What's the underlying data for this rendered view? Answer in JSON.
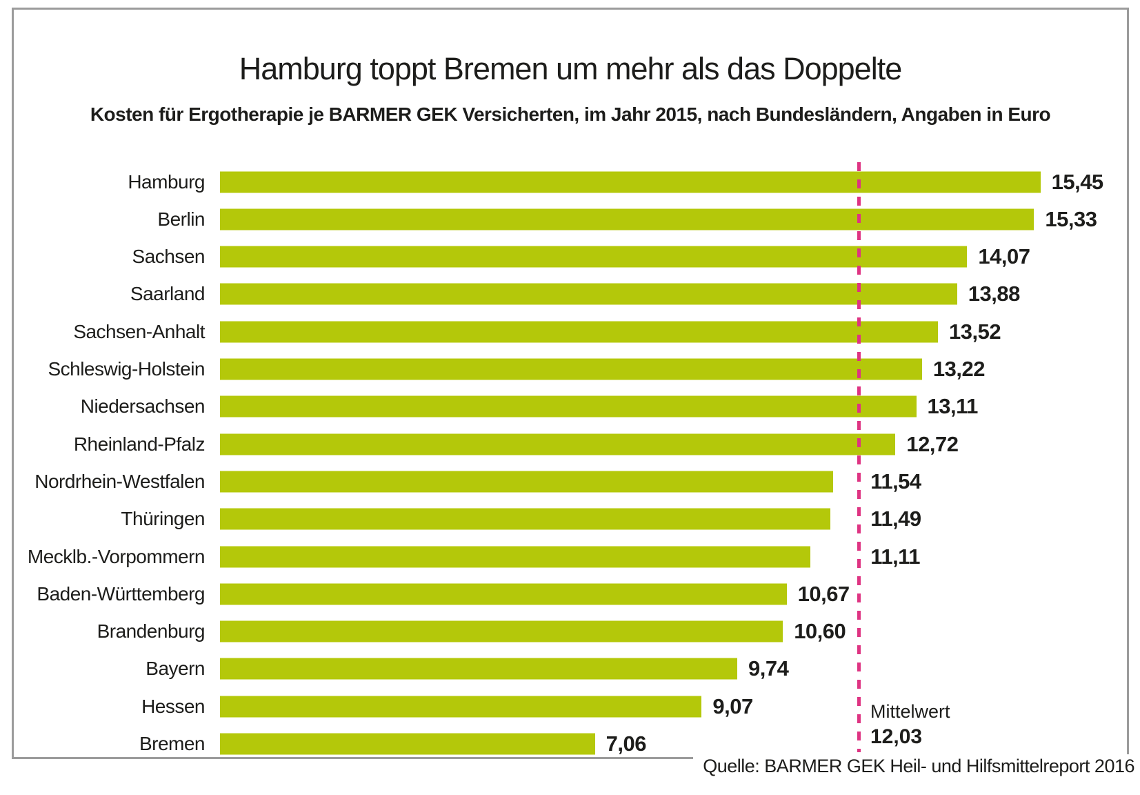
{
  "title": "Hamburg toppt Bremen um mehr als das Doppelte",
  "subtitle": "Kosten für Ergotherapie je BARMER GEK Versicherten, im Jahr 2015, nach Bundesländern, Angaben in Euro",
  "source": "Quelle: BARMER GEK Heil- und Hilfsmittelreport 2016",
  "mean": {
    "label": "Mittelwert",
    "value_label": "12,03",
    "value": 12.03
  },
  "colors": {
    "bar": "#b4c80a",
    "mean_line": "#de3382",
    "text": "#1d1d1b",
    "frame_border": "#9b9b9b"
  },
  "chart_data": {
    "type": "bar",
    "orientation": "horizontal",
    "title": "Hamburg toppt Bremen um mehr als das Doppelte",
    "subtitle": "Kosten für Ergotherapie je BARMER GEK Versicherten, im Jahr 2015, nach Bundesländern, Angaben in Euro",
    "unit": "Euro",
    "year": "2015",
    "xlim": [
      0,
      16
    ],
    "grid": false,
    "legend": false,
    "categories": [
      "Hamburg",
      "Berlin",
      "Sachsen",
      "Saarland",
      "Sachsen-Anhalt",
      "Schleswig-Holstein",
      "Niedersachsen",
      "Rheinland-Pfalz",
      "Nordrhein-Westfalen",
      "Thüringen",
      "Mecklb.-Vorpommern",
      "Baden-Württemberg",
      "Brandenburg",
      "Bayern",
      "Hessen",
      "Bremen"
    ],
    "values": [
      15.45,
      15.33,
      14.07,
      13.88,
      13.52,
      13.22,
      13.11,
      12.72,
      11.54,
      11.49,
      11.11,
      10.67,
      10.6,
      9.74,
      9.07,
      7.06
    ],
    "value_labels": [
      "15,45",
      "15,33",
      "14,07",
      "13,88",
      "13,52",
      "13,22",
      "13,11",
      "12,72",
      "11,54",
      "11,49",
      "11,11",
      "10,67",
      "10,60",
      "9,74",
      "9,07",
      "7,06"
    ],
    "mean_line": {
      "label": "Mittelwert",
      "value": 12.03,
      "value_label": "12,03",
      "style": "dashed",
      "color": "#de3382"
    }
  }
}
